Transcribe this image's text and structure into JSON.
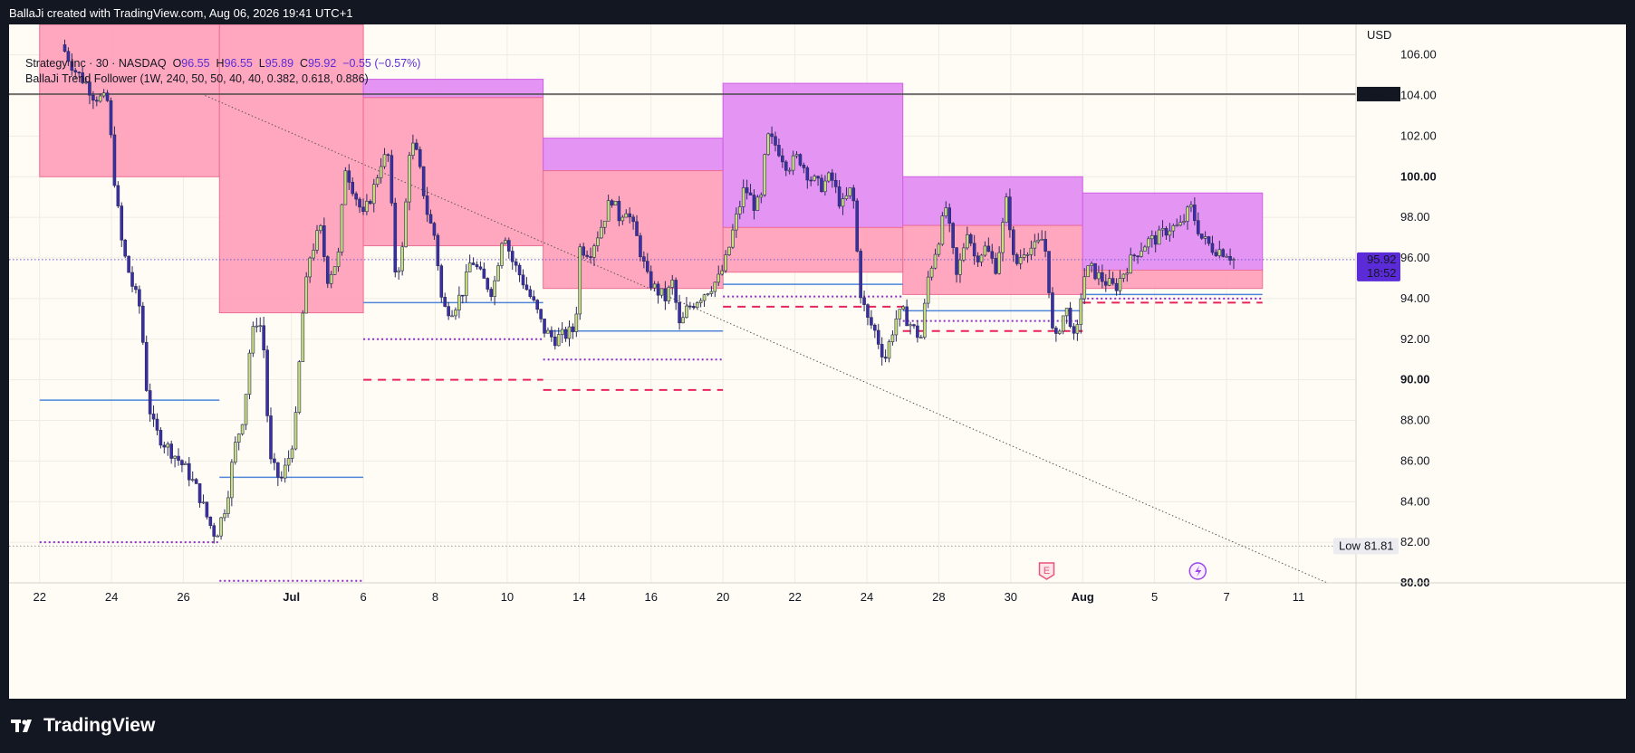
{
  "header": {
    "caption": "BallaJi created with TradingView.com, Aug 06, 2026 19:41 UTC+1"
  },
  "legend": {
    "symbol": "Strategy Inc · 30 · NASDAQ",
    "o_label": "O",
    "o": "96.55",
    "h_label": "H",
    "h": "96.55",
    "l_label": "L",
    "l": "95.89",
    "c_label": "C",
    "c": "95.92",
    "change": "−0.55 (−0.57%)",
    "indicator": "BallaJi Trend Follower (1W, 240, 50, 50, 40, 40, 0.382, 0.618, 0.886)"
  },
  "axis": {
    "currency": "USD",
    "low_label": "Low",
    "low_value": "81.81",
    "last_price": "95.92",
    "countdown": "18:52",
    "hline_price": "104.07"
  },
  "footer": {
    "brand": "TradingView"
  },
  "icons": {
    "earnings": "E",
    "dividend": "lightning-icon"
  },
  "colors": {
    "bull": "#c8e17a",
    "bear": "#3a2fa8",
    "pink_zone": "#ff9fba",
    "violet_zone": "#e28cf2",
    "blue_line": "#4f86d9",
    "purple_dots": "#8c2cc9",
    "red_dash": "#e6255d"
  },
  "chart_data": {
    "type": "candlestick",
    "ylim": [
      80,
      107.5
    ],
    "y_ticks": [
      "80.00",
      "82.00",
      "84.00",
      "86.00",
      "88.00",
      "90.00",
      "92.00",
      "94.00",
      "96.00",
      "98.00",
      "100.00",
      "102.00",
      "104.00",
      "106.00"
    ],
    "x_ticks": [
      {
        "label": "22",
        "x": 0
      },
      {
        "label": "24",
        "x": 2
      },
      {
        "label": "26",
        "x": 4
      },
      {
        "label": "Jul",
        "x": 7
      },
      {
        "label": "6",
        "x": 9
      },
      {
        "label": "8",
        "x": 11
      },
      {
        "label": "10",
        "x": 13
      },
      {
        "label": "14",
        "x": 15
      },
      {
        "label": "16",
        "x": 17
      },
      {
        "label": "20",
        "x": 19
      },
      {
        "label": "22",
        "x": 21
      },
      {
        "label": "24",
        "x": 23
      },
      {
        "label": "28",
        "x": 25
      },
      {
        "label": "30",
        "x": 27
      },
      {
        "label": "Aug",
        "x": 29
      },
      {
        "label": "5",
        "x": 31
      },
      {
        "label": "7",
        "x": 33
      },
      {
        "label": "11",
        "x": 35
      }
    ],
    "xlim": [
      -0.85,
      36.6
    ],
    "path": [
      [
        0.6,
        106.5
      ],
      [
        1.0,
        105.2
      ],
      [
        1.3,
        104.6
      ],
      [
        1.5,
        104.0
      ],
      [
        1.9,
        103.7
      ],
      [
        2.0,
        101.5
      ],
      [
        2.1,
        99.5
      ],
      [
        2.3,
        96.5
      ],
      [
        2.6,
        94.5
      ],
      [
        2.8,
        93.5
      ],
      [
        3.0,
        89
      ],
      [
        3.2,
        87.5
      ],
      [
        3.5,
        86.8
      ],
      [
        3.8,
        86.2
      ],
      [
        4.1,
        85.5
      ],
      [
        4.4,
        84.5
      ],
      [
        4.7,
        83
      ],
      [
        4.9,
        82.3
      ],
      [
        5.2,
        84
      ],
      [
        5.4,
        86.5
      ],
      [
        5.7,
        88.5
      ],
      [
        5.8,
        91
      ],
      [
        6.0,
        93
      ],
      [
        6.2,
        92.5
      ],
      [
        6.4,
        86
      ],
      [
        6.7,
        85
      ],
      [
        6.9,
        86
      ],
      [
        7.1,
        87.5
      ],
      [
        7.3,
        93
      ],
      [
        7.5,
        96
      ],
      [
        7.8,
        97.5
      ],
      [
        8.0,
        95
      ],
      [
        8.3,
        96
      ],
      [
        8.5,
        100.5
      ],
      [
        8.7,
        99.5
      ],
      [
        9.0,
        98
      ],
      [
        9.3,
        99.5
      ],
      [
        9.5,
        100.8
      ],
      [
        9.7,
        101
      ],
      [
        9.9,
        95
      ],
      [
        10.1,
        96.5
      ],
      [
        10.3,
        101.8
      ],
      [
        10.5,
        101
      ],
      [
        10.8,
        98
      ],
      [
        11.0,
        97
      ],
      [
        11.2,
        93.5
      ],
      [
        11.5,
        93.5
      ],
      [
        11.8,
        94.5
      ],
      [
        12.0,
        96
      ],
      [
        12.3,
        95
      ],
      [
        12.6,
        94.3
      ],
      [
        12.9,
        97.5
      ],
      [
        13.1,
        96
      ],
      [
        13.4,
        95
      ],
      [
        13.8,
        93.5
      ],
      [
        14.0,
        92.5
      ],
      [
        14.3,
        92
      ],
      [
        14.6,
        92.2
      ],
      [
        14.9,
        92.5
      ],
      [
        15.0,
        96.5
      ],
      [
        15.3,
        96.3
      ],
      [
        15.6,
        97.5
      ],
      [
        15.9,
        99
      ],
      [
        16.1,
        98
      ],
      [
        16.3,
        98.5
      ],
      [
        16.6,
        97
      ],
      [
        16.9,
        95
      ],
      [
        17.1,
        94.5
      ],
      [
        17.4,
        94
      ],
      [
        17.6,
        94.8
      ],
      [
        17.8,
        92.5
      ],
      [
        18.0,
        93.5
      ],
      [
        18.3,
        94
      ],
      [
        18.6,
        94.5
      ],
      [
        18.9,
        95
      ],
      [
        19.1,
        96
      ],
      [
        19.3,
        97.5
      ],
      [
        19.6,
        99.5
      ],
      [
        19.9,
        98.5
      ],
      [
        20.1,
        99
      ],
      [
        20.2,
        102
      ],
      [
        20.5,
        101.5
      ],
      [
        20.8,
        100.5
      ],
      [
        21.1,
        101
      ],
      [
        21.4,
        100
      ],
      [
        21.7,
        99.5
      ],
      [
        22.0,
        100
      ],
      [
        22.3,
        98.5
      ],
      [
        22.6,
        99.5
      ],
      [
        22.8,
        94.5
      ],
      [
        23.0,
        93
      ],
      [
        23.2,
        92.5
      ],
      [
        23.5,
        91
      ],
      [
        23.8,
        93
      ],
      [
        24.0,
        93.3
      ],
      [
        24.3,
        92.5
      ],
      [
        24.5,
        92
      ],
      [
        24.7,
        95
      ],
      [
        25.0,
        97
      ],
      [
        25.2,
        98.5
      ],
      [
        25.5,
        95
      ],
      [
        25.8,
        97.5
      ],
      [
        26.0,
        96
      ],
      [
        26.3,
        96.5
      ],
      [
        26.6,
        95.5
      ],
      [
        26.9,
        99
      ],
      [
        27.1,
        95.5
      ],
      [
        27.4,
        96.5
      ],
      [
        27.7,
        96.5
      ],
      [
        27.9,
        97
      ],
      [
        28.0,
        96
      ],
      [
        28.2,
        91.5
      ],
      [
        28.4,
        93
      ],
      [
        28.6,
        93.5
      ],
      [
        28.8,
        91.5
      ],
      [
        29.0,
        95
      ],
      [
        29.2,
        95.5
      ],
      [
        29.5,
        95
      ],
      [
        29.9,
        94.5
      ],
      [
        30.2,
        95.5
      ],
      [
        30.5,
        96.3
      ],
      [
        30.8,
        96.8
      ],
      [
        31.1,
        97
      ],
      [
        31.4,
        97.5
      ],
      [
        31.7,
        97.5
      ],
      [
        32.0,
        98.5
      ],
      [
        32.3,
        97
      ],
      [
        32.6,
        96.5
      ],
      [
        33.0,
        96.3
      ],
      [
        33.2,
        95.92
      ]
    ],
    "zones": [
      {
        "x0": 0,
        "x1": 5,
        "y0": 100.0,
        "y1": 107.5,
        "fill": "pink"
      },
      {
        "x0": 5,
        "x1": 9,
        "y0": 93.3,
        "y1": 107.5,
        "fill": "pink"
      },
      {
        "x0": 9,
        "x1": 14,
        "y0": 103.9,
        "y1": 104.8,
        "fill": "violet"
      },
      {
        "x0": 9,
        "x1": 14,
        "y0": 96.6,
        "y1": 103.9,
        "fill": "pink"
      },
      {
        "x0": 14,
        "x1": 19,
        "y0": 100.3,
        "y1": 101.9,
        "fill": "violet"
      },
      {
        "x0": 14,
        "x1": 19,
        "y0": 94.5,
        "y1": 100.3,
        "fill": "pink"
      },
      {
        "x0": 19,
        "x1": 24,
        "y0": 97.5,
        "y1": 104.6,
        "fill": "violet"
      },
      {
        "x0": 19,
        "x1": 24,
        "y0": 95.3,
        "y1": 97.5,
        "fill": "pink"
      },
      {
        "x0": 24,
        "x1": 29,
        "y0": 97.6,
        "y1": 100.0,
        "fill": "violet"
      },
      {
        "x0": 24,
        "x1": 29,
        "y0": 94.2,
        "y1": 97.6,
        "fill": "pink"
      },
      {
        "x0": 29,
        "x1": 34,
        "y0": 95.4,
        "y1": 99.2,
        "fill": "violet"
      },
      {
        "x0": 29,
        "x1": 34,
        "y0": 94.5,
        "y1": 95.4,
        "fill": "pink"
      }
    ],
    "levels": [
      {
        "x0": 0,
        "x1": 5,
        "y": 89.0,
        "style": "blue"
      },
      {
        "x0": 0,
        "x1": 5,
        "y": 82.0,
        "style": "dots"
      },
      {
        "x0": 5,
        "x1": 9,
        "y": 85.2,
        "style": "blue"
      },
      {
        "x0": 5,
        "x1": 9,
        "y": 80.1,
        "style": "dots"
      },
      {
        "x0": 9,
        "x1": 14,
        "y": 93.8,
        "style": "blue"
      },
      {
        "x0": 9,
        "x1": 14,
        "y": 92.0,
        "style": "dots"
      },
      {
        "x0": 9,
        "x1": 14,
        "y": 90.0,
        "style": "dash"
      },
      {
        "x0": 14,
        "x1": 19,
        "y": 92.4,
        "style": "blue"
      },
      {
        "x0": 14,
        "x1": 19,
        "y": 91.0,
        "style": "dots"
      },
      {
        "x0": 14,
        "x1": 19,
        "y": 89.5,
        "style": "dash"
      },
      {
        "x0": 19,
        "x1": 24,
        "y": 94.7,
        "style": "blue"
      },
      {
        "x0": 19,
        "x1": 24,
        "y": 94.1,
        "style": "dots"
      },
      {
        "x0": 19,
        "x1": 24,
        "y": 93.6,
        "style": "dash"
      },
      {
        "x0": 24,
        "x1": 29,
        "y": 93.4,
        "style": "blue"
      },
      {
        "x0": 24,
        "x1": 29,
        "y": 92.9,
        "style": "dots"
      },
      {
        "x0": 24,
        "x1": 29,
        "y": 92.4,
        "style": "dash"
      },
      {
        "x0": 29,
        "x1": 34,
        "y": 94.2,
        "style": "blue"
      },
      {
        "x0": 29,
        "x1": 34,
        "y": 94.0,
        "style": "dots"
      },
      {
        "x0": 29,
        "x1": 34,
        "y": 93.8,
        "style": "dash"
      }
    ],
    "trendline": {
      "x0": 4.6,
      "y0": 104.0,
      "x1": 35.8,
      "y1": 80.0
    },
    "hline": 104.07,
    "last": 95.92,
    "low": 81.81,
    "markers": [
      {
        "kind": "earnings",
        "x": 28
      },
      {
        "kind": "dividend",
        "x": 32.2
      }
    ]
  }
}
